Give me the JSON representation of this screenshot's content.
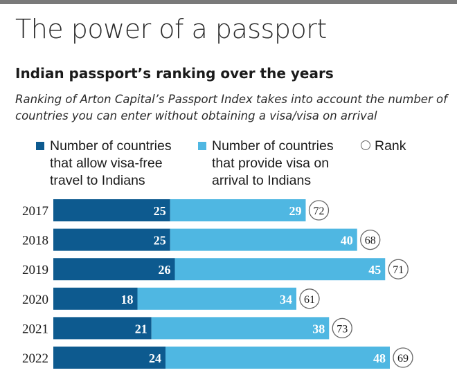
{
  "title": "The power of a passport",
  "subtitle": "Indian passport’s ranking over the years",
  "description": "Ranking of Arton Capital’s Passport Index takes into account the number of countries you can enter without obtaining a visa/visa on arrival",
  "legend": {
    "visa_free": "Number of countries that allow visa-free travel to Indians",
    "on_arrival": "Number of countries that provide visa on arrival to Indians",
    "rank": "Rank"
  },
  "colors": {
    "visa_free": "#0d5a8f",
    "on_arrival": "#4fb7e2",
    "rank_circle_stroke": "#666666",
    "top_bar": "#7a7a7a"
  },
  "chart_data": {
    "type": "bar",
    "orientation": "horizontal",
    "stacked": true,
    "categories": [
      "2017",
      "2018",
      "2019",
      "2020",
      "2021",
      "2022"
    ],
    "series": [
      {
        "name": "Number of countries that allow visa-free travel to Indians",
        "values": [
          25,
          25,
          26,
          18,
          21,
          24
        ]
      },
      {
        "name": "Number of countries that provide visa on arrival to Indians",
        "values": [
          29,
          40,
          45,
          34,
          38,
          48
        ]
      }
    ],
    "rank": {
      "name": "Rank",
      "values": [
        72,
        68,
        71,
        61,
        73,
        69
      ]
    },
    "xlim": [
      0,
      72
    ],
    "legend_position": "top",
    "grid": false
  }
}
